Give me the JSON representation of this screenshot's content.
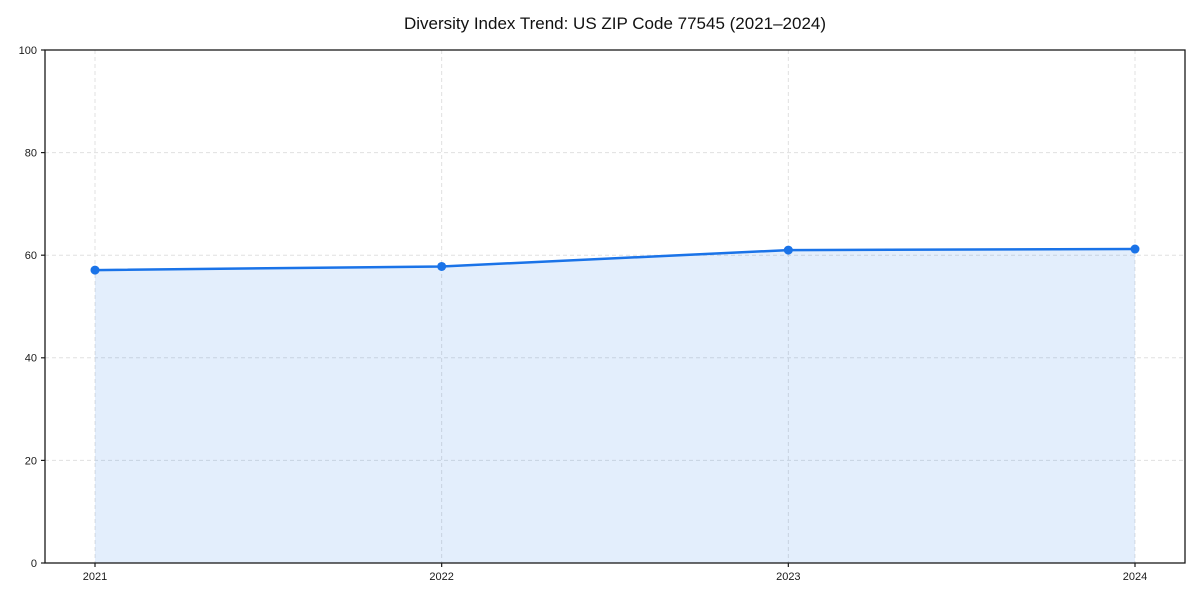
{
  "chart_data": {
    "type": "line",
    "title": "Diversity Index Trend: US ZIP Code 77545 (2021–2024)",
    "x": [
      "2021",
      "2022",
      "2023",
      "2024"
    ],
    "series": [
      {
        "name": "Diversity Index",
        "values": [
          57.1,
          57.8,
          61.0,
          61.2
        ]
      }
    ],
    "xlabel": "",
    "ylabel": "",
    "ylim": [
      0,
      100
    ],
    "yticks": [
      0,
      20,
      40,
      60,
      80,
      100
    ],
    "grid": "dashed",
    "legend_position": "none",
    "line_color": "#1a73e8",
    "fill_color": "rgba(26,115,232,0.12)",
    "grid_color": "#e0e0e0",
    "frame_color": "#1a1a1a",
    "label_color": "#1a1a1a",
    "marker": "circle"
  }
}
